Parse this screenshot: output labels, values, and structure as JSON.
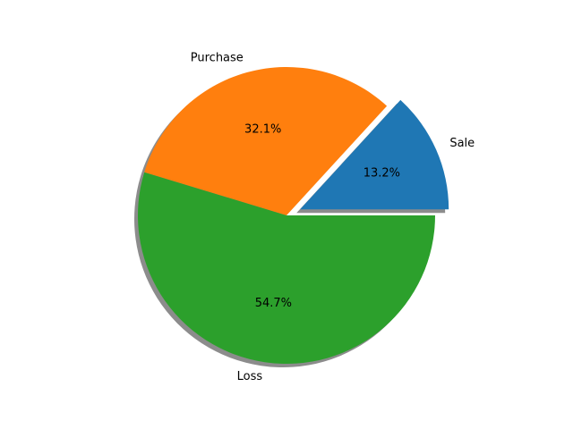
{
  "chart_data": {
    "type": "pie",
    "categories": [
      "Sale",
      "Purchase",
      "Loss"
    ],
    "values": [
      13.2,
      32.1,
      54.7
    ],
    "value_labels": [
      "13.2%",
      "32.1%",
      "54.7%"
    ],
    "colors": [
      "#1f77b4",
      "#ff7f0e",
      "#2ca02c"
    ],
    "explode": [
      0.1,
      0,
      0
    ],
    "shadow": true,
    "start_angle_deg": 0,
    "direction": "counterclockwise",
    "title": "",
    "legend": "none"
  }
}
